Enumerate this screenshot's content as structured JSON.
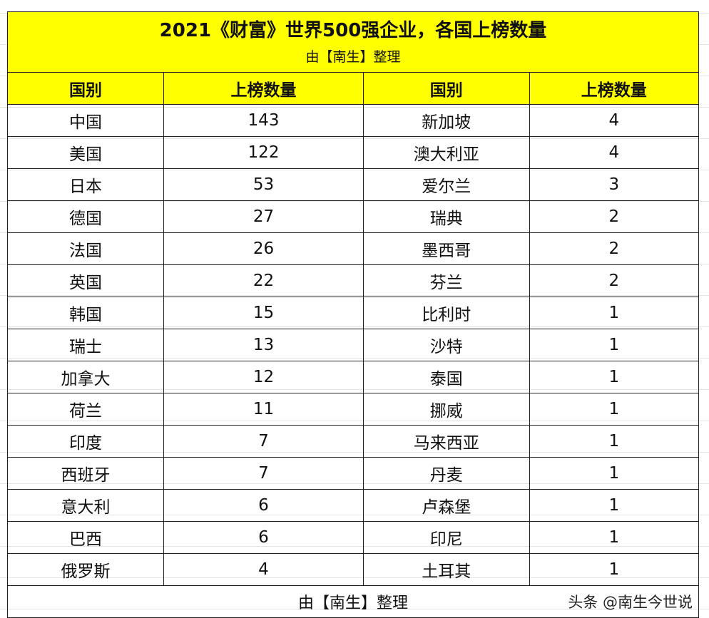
{
  "title": "2021《财富》世界500强企业，各国上榜数量",
  "subtitle": "由【南生】整理",
  "headers": [
    "国别",
    "上榜数量",
    "国别",
    "上榜数量"
  ],
  "rows": [
    [
      "中国",
      "143",
      "新加坡",
      "4"
    ],
    [
      "美国",
      "122",
      "澳大利亚",
      "4"
    ],
    [
      "日本",
      "53",
      "爱尔兰",
      "3"
    ],
    [
      "德国",
      "27",
      "瑞典",
      "2"
    ],
    [
      "法国",
      "26",
      "墨西哥",
      "2"
    ],
    [
      "英国",
      "22",
      "芬兰",
      "2"
    ],
    [
      "韩国",
      "15",
      "比利时",
      "1"
    ],
    [
      "瑞士",
      "13",
      "沙特",
      "1"
    ],
    [
      "加拿大",
      "12",
      "泰国",
      "1"
    ],
    [
      "荷兰",
      "11",
      "挪威",
      "1"
    ],
    [
      "印度",
      "7",
      "马来西亚",
      "1"
    ],
    [
      "西班牙",
      "7",
      "丹麦",
      "1"
    ],
    [
      "意大利",
      "6",
      "卢森堡",
      "1"
    ],
    [
      "巴西",
      "6",
      "印尼",
      "1"
    ],
    [
      "俄罗斯",
      "4",
      "土耳其",
      "1"
    ]
  ],
  "footer": "由【南生】整理",
  "watermark": "头条 @南生今世说",
  "colors": {
    "header_bg": "#ffff00",
    "border": "#222222"
  }
}
